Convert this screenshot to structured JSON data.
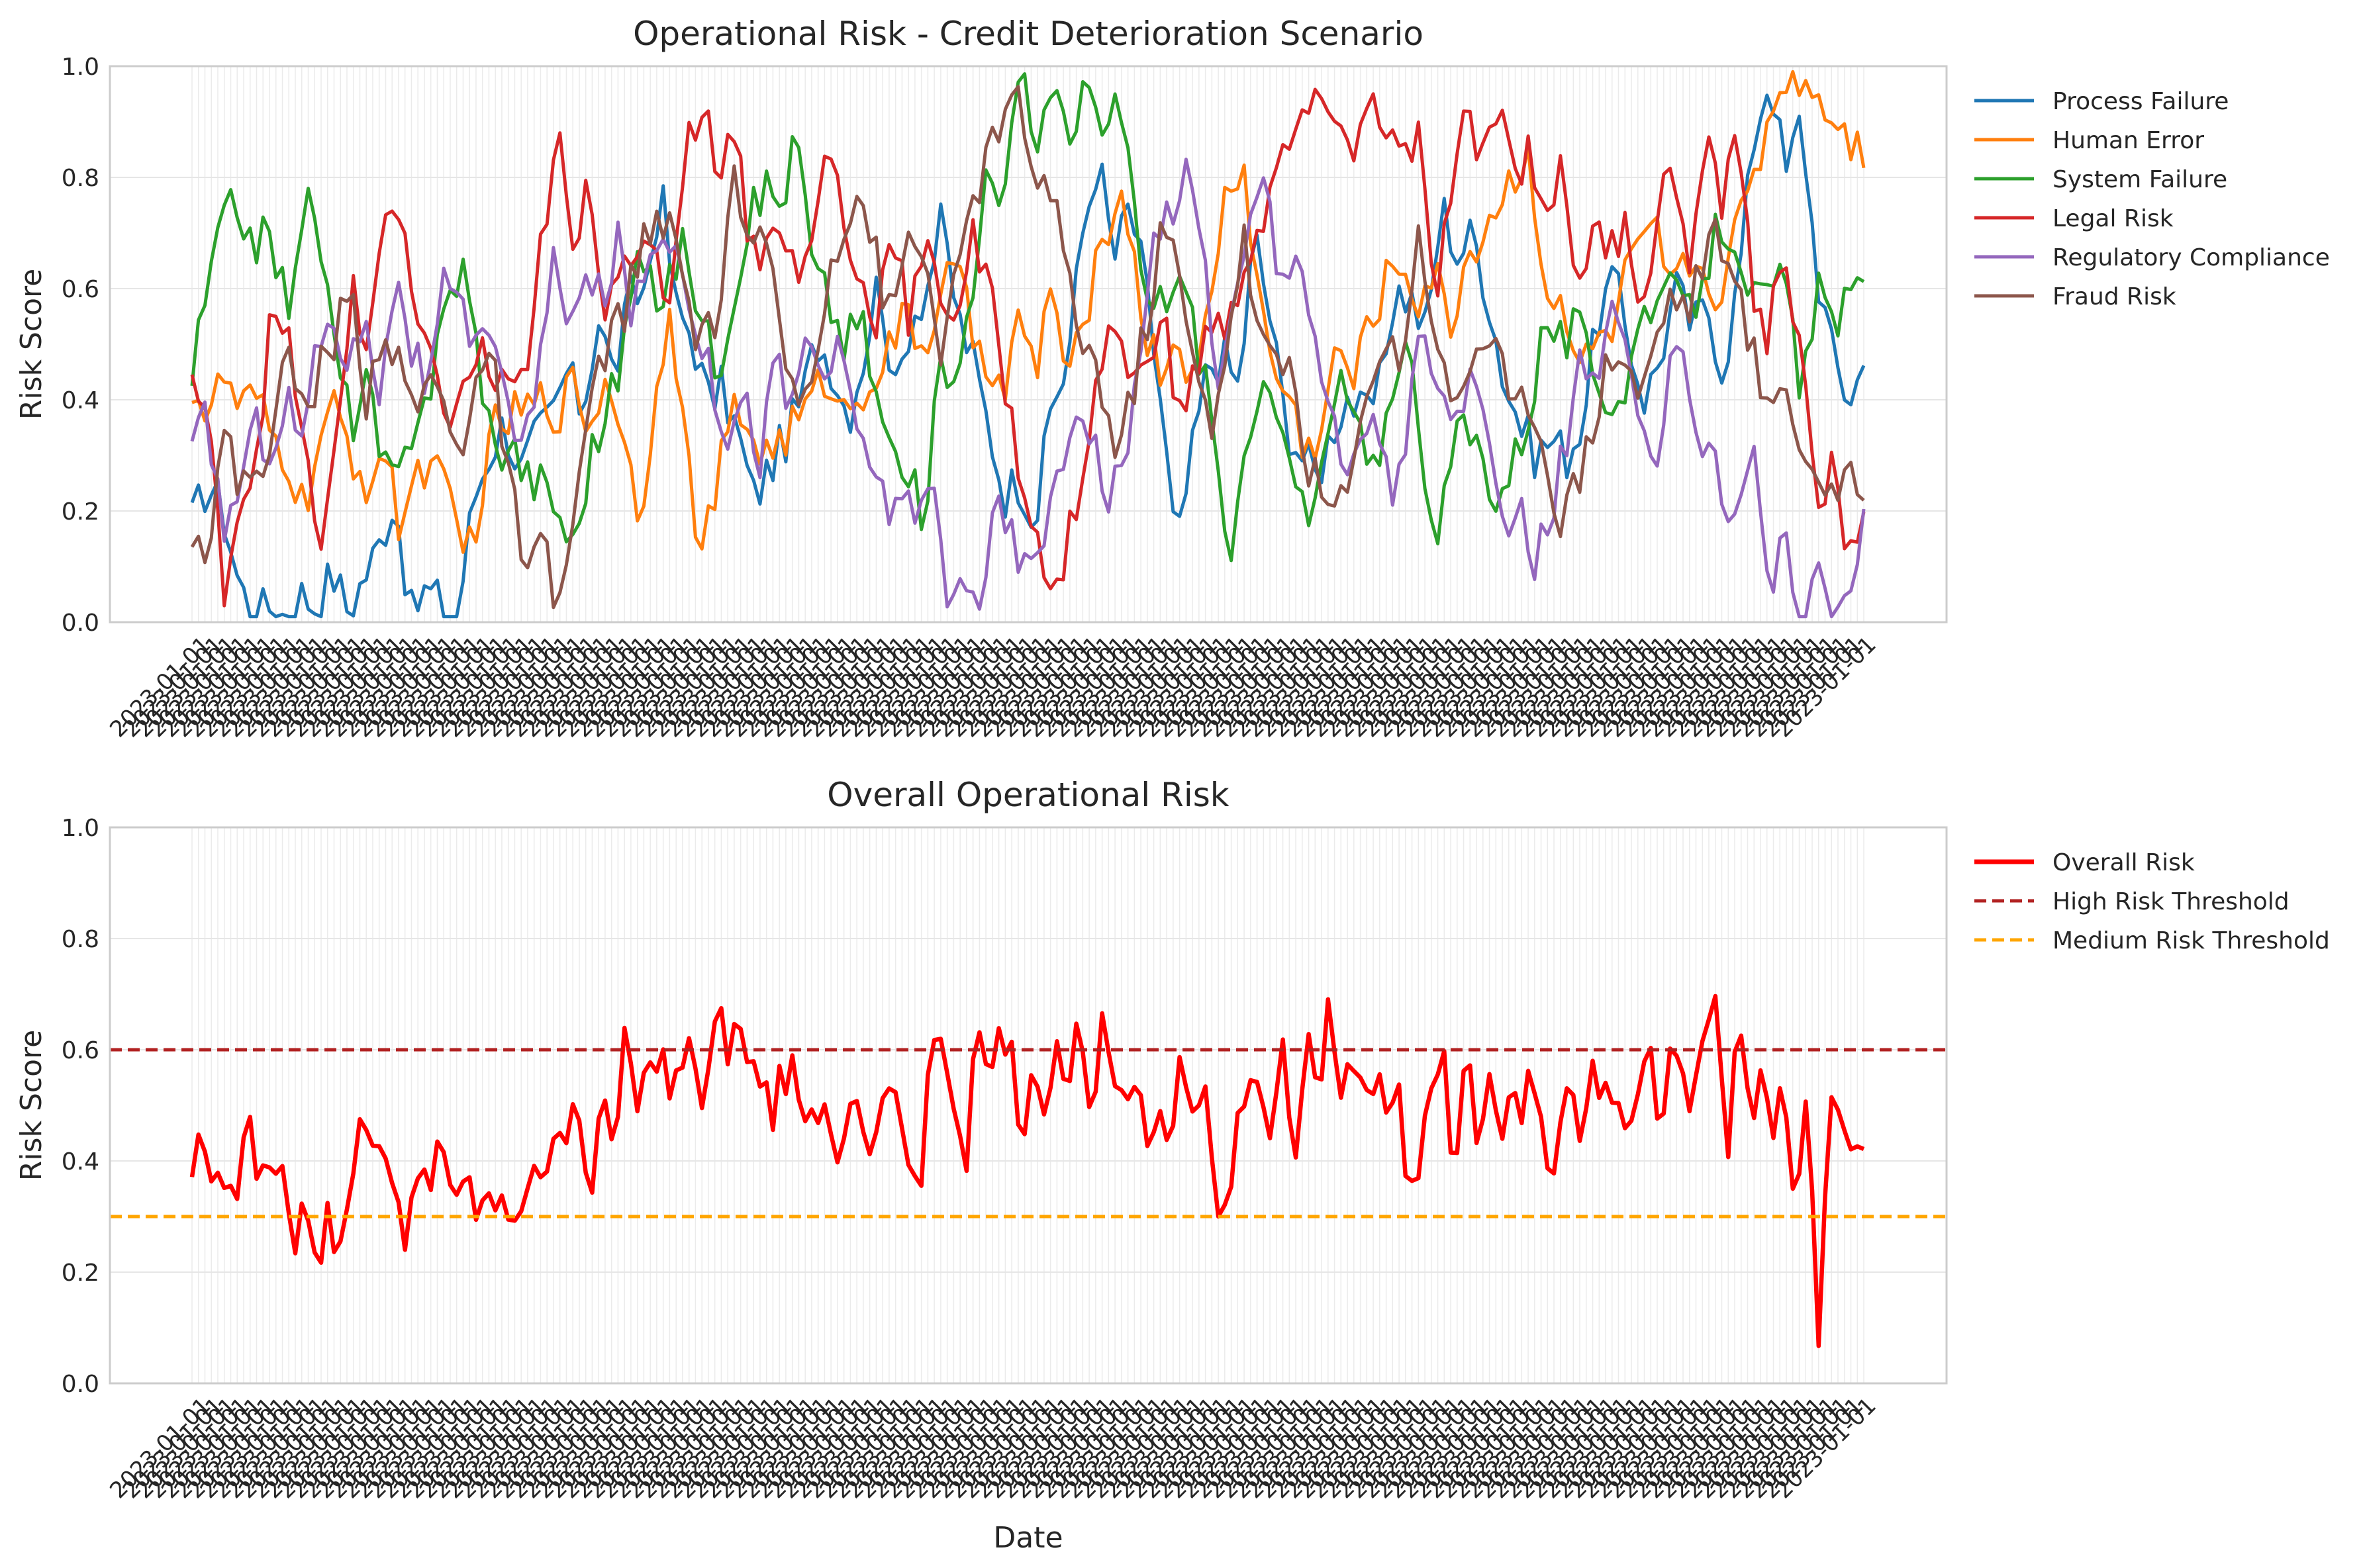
{
  "chart_data": [
    {
      "type": "line",
      "title": "Operational Risk - Credit Deterioration Scenario",
      "xlabel": "",
      "ylabel": "Risk Score",
      "ylim": [
        0,
        1
      ],
      "yticks": [
        "0.0",
        "0.2",
        "0.4",
        "0.6",
        "0.8",
        "1.0"
      ],
      "x_count": 260,
      "x_tick_labels_note": "dense overlapping rotated date labels",
      "grid": true,
      "legend": "outside-right",
      "series": [
        {
          "name": "Process Failure",
          "color": "#1f77b4",
          "keyframes": [
            0.18,
            0.25,
            0.2,
            0.07,
            0.01,
            0.03,
            0.01,
            0.05,
            0.03,
            0.09,
            0.02,
            0.08,
            0.14,
            0.23,
            0.01,
            0.06,
            0.03,
            0.01,
            0.22,
            0.3,
            0.36,
            0.27,
            0.33,
            0.37,
            0.45,
            0.38,
            0.55,
            0.44,
            0.58,
            0.6,
            0.78,
            0.56,
            0.52,
            0.4,
            0.42,
            0.33,
            0.22,
            0.28,
            0.33,
            0.4,
            0.51,
            0.46,
            0.37,
            0.48,
            0.63,
            0.4,
            0.55,
            0.6,
            0.72,
            0.55,
            0.47,
            0.35,
            0.23,
            0.26,
            0.18,
            0.39,
            0.46,
            0.7,
            0.84,
            0.65,
            0.75,
            0.61,
            0.4,
            0.12,
            0.3,
            0.46,
            0.48,
            0.42,
            0.7,
            0.55,
            0.36,
            0.3,
            0.26,
            0.35,
            0.41,
            0.36,
            0.42,
            0.6,
            0.58,
            0.52,
            0.75,
            0.66,
            0.7,
            0.58,
            0.43,
            0.36,
            0.3,
            0.33,
            0.3,
            0.36,
            0.55,
            0.62,
            0.5,
            0.4,
            0.48,
            0.6,
            0.53,
            0.57,
            0.45,
            0.62,
            0.88,
            0.99,
            0.8,
            0.91,
            0.63,
            0.48,
            0.4,
            0.46
          ]
        },
        {
          "name": "Human Error",
          "color": "#ff7f0e",
          "keyframes": [
            0.43,
            0.37,
            0.44,
            0.38,
            0.4,
            0.33,
            0.29,
            0.2,
            0.32,
            0.38,
            0.3,
            0.25,
            0.31,
            0.18,
            0.26,
            0.3,
            0.22,
            0.12,
            0.2,
            0.35,
            0.37,
            0.38,
            0.4,
            0.38,
            0.43,
            0.35,
            0.44,
            0.37,
            0.18,
            0.37,
            0.6,
            0.31,
            0.12,
            0.25,
            0.38,
            0.35,
            0.3,
            0.33,
            0.36,
            0.4,
            0.45,
            0.37,
            0.42,
            0.45,
            0.5,
            0.55,
            0.48,
            0.6,
            0.63,
            0.52,
            0.48,
            0.4,
            0.55,
            0.44,
            0.63,
            0.4,
            0.55,
            0.65,
            0.78,
            0.7,
            0.5,
            0.45,
            0.52,
            0.4,
            0.6,
            0.78,
            0.83,
            0.58,
            0.45,
            0.4,
            0.3,
            0.36,
            0.5,
            0.43,
            0.55,
            0.61,
            0.65,
            0.58,
            0.63,
            0.53,
            0.65,
            0.7,
            0.75,
            0.8,
            0.85,
            0.6,
            0.55,
            0.45,
            0.52,
            0.48,
            0.62,
            0.66,
            0.7,
            0.58,
            0.66,
            0.62,
            0.6,
            0.7,
            0.8,
            0.9,
            0.99,
            0.99,
            0.95,
            0.92,
            0.88,
            0.85
          ]
        },
        {
          "name": "System Failure",
          "color": "#2ca02c",
          "keyframes": [
            0.44,
            0.6,
            0.73,
            0.74,
            0.69,
            0.68,
            0.57,
            0.76,
            0.7,
            0.48,
            0.36,
            0.43,
            0.27,
            0.25,
            0.38,
            0.43,
            0.58,
            0.64,
            0.48,
            0.3,
            0.33,
            0.26,
            0.25,
            0.2,
            0.13,
            0.3,
            0.37,
            0.48,
            0.66,
            0.58,
            0.62,
            0.68,
            0.55,
            0.45,
            0.6,
            0.72,
            0.79,
            0.75,
            0.88,
            0.63,
            0.58,
            0.5,
            0.55,
            0.4,
            0.3,
            0.25,
            0.2,
            0.45,
            0.48,
            0.56,
            0.86,
            0.75,
            0.99,
            0.85,
            0.99,
            0.85,
            0.99,
            0.86,
            0.94,
            0.78,
            0.56,
            0.58,
            0.62,
            0.52,
            0.4,
            0.11,
            0.25,
            0.38,
            0.42,
            0.33,
            0.15,
            0.28,
            0.43,
            0.38,
            0.24,
            0.37,
            0.52,
            0.4,
            0.09,
            0.29,
            0.36,
            0.3,
            0.22,
            0.29,
            0.38,
            0.55,
            0.5,
            0.53,
            0.45,
            0.4,
            0.42,
            0.55,
            0.6,
            0.58,
            0.55,
            0.63,
            0.72,
            0.7,
            0.58,
            0.57,
            0.63,
            0.4,
            0.59,
            0.55,
            0.57,
            0.59
          ]
        },
        {
          "name": "Legal Risk",
          "color": "#d62728",
          "keyframes": [
            0.44,
            0.35,
            0.07,
            0.22,
            0.3,
            0.55,
            0.5,
            0.35,
            0.08,
            0.33,
            0.6,
            0.48,
            0.75,
            0.72,
            0.55,
            0.45,
            0.38,
            0.4,
            0.5,
            0.42,
            0.45,
            0.4,
            0.7,
            0.87,
            0.64,
            0.8,
            0.55,
            0.7,
            0.63,
            0.66,
            0.58,
            0.87,
            0.93,
            0.82,
            0.9,
            0.7,
            0.66,
            0.74,
            0.6,
            0.69,
            0.88,
            0.7,
            0.6,
            0.55,
            0.73,
            0.55,
            0.66,
            0.6,
            0.55,
            0.69,
            0.6,
            0.45,
            0.25,
            0.2,
            0.01,
            0.15,
            0.28,
            0.45,
            0.55,
            0.4,
            0.5,
            0.55,
            0.36,
            0.45,
            0.55,
            0.5,
            0.65,
            0.7,
            0.8,
            0.85,
            0.93,
            0.9,
            0.94,
            0.82,
            0.95,
            0.9,
            0.82,
            0.87,
            0.58,
            0.75,
            0.9,
            0.83,
            0.95,
            0.81,
            0.85,
            0.75,
            0.8,
            0.62,
            0.7,
            0.66,
            0.73,
            0.58,
            0.7,
            0.87,
            0.6,
            0.86,
            0.75,
            0.91,
            0.6,
            0.5,
            0.7,
            0.48,
            0.2,
            0.27,
            0.13,
            0.21
          ]
        },
        {
          "name": "Regulatory Compliance",
          "color": "#9467bd",
          "keyframes": [
            0.3,
            0.37,
            0.16,
            0.25,
            0.35,
            0.32,
            0.4,
            0.33,
            0.5,
            0.55,
            0.45,
            0.57,
            0.4,
            0.65,
            0.48,
            0.42,
            0.6,
            0.55,
            0.48,
            0.56,
            0.4,
            0.3,
            0.45,
            0.65,
            0.55,
            0.6,
            0.58,
            0.68,
            0.55,
            0.65,
            0.72,
            0.65,
            0.55,
            0.42,
            0.35,
            0.4,
            0.3,
            0.47,
            0.38,
            0.52,
            0.45,
            0.48,
            0.36,
            0.3,
            0.2,
            0.25,
            0.15,
            0.25,
            0.01,
            0.1,
            0.05,
            0.2,
            0.15,
            0.08,
            0.18,
            0.25,
            0.4,
            0.36,
            0.22,
            0.28,
            0.42,
            0.7,
            0.75,
            0.8,
            0.7,
            0.45,
            0.55,
            0.7,
            0.81,
            0.6,
            0.7,
            0.55,
            0.4,
            0.26,
            0.3,
            0.4,
            0.22,
            0.35,
            0.53,
            0.4,
            0.35,
            0.45,
            0.32,
            0.16,
            0.22,
            0.1,
            0.18,
            0.3,
            0.47,
            0.4,
            0.58,
            0.45,
            0.3,
            0.32,
            0.55,
            0.4,
            0.3,
            0.25,
            0.18,
            0.33,
            0.05,
            0.16,
            0.01,
            0.08,
            0.01,
            0.06,
            0.16
          ]
        },
        {
          "name": "Fraud Risk",
          "color": "#8c564b",
          "keyframes": [
            0.18,
            0.13,
            0.34,
            0.24,
            0.28,
            0.33,
            0.48,
            0.38,
            0.45,
            0.52,
            0.59,
            0.4,
            0.55,
            0.45,
            0.38,
            0.44,
            0.37,
            0.33,
            0.46,
            0.44,
            0.25,
            0.06,
            0.14,
            0.01,
            0.2,
            0.38,
            0.5,
            0.55,
            0.66,
            0.7,
            0.71,
            0.6,
            0.49,
            0.55,
            0.82,
            0.66,
            0.67,
            0.52,
            0.38,
            0.45,
            0.65,
            0.72,
            0.78,
            0.65,
            0.53,
            0.7,
            0.65,
            0.5,
            0.6,
            0.75,
            0.85,
            0.9,
            0.93,
            0.8,
            0.76,
            0.62,
            0.5,
            0.45,
            0.3,
            0.4,
            0.55,
            0.72,
            0.62,
            0.44,
            0.36,
            0.5,
            0.7,
            0.52,
            0.45,
            0.47,
            0.3,
            0.22,
            0.2,
            0.27,
            0.47,
            0.5,
            0.48,
            0.7,
            0.55,
            0.38,
            0.45,
            0.52,
            0.48,
            0.36,
            0.42,
            0.3,
            0.19,
            0.25,
            0.36,
            0.48,
            0.48,
            0.4,
            0.52,
            0.6,
            0.56,
            0.67,
            0.7,
            0.58,
            0.5,
            0.36,
            0.47,
            0.3,
            0.27,
            0.24,
            0.25,
            0.21
          ]
        }
      ]
    },
    {
      "type": "line",
      "title": "Overall Operational Risk",
      "xlabel": "Date",
      "ylabel": "Risk Score",
      "ylim": [
        0,
        1
      ],
      "yticks": [
        "0.0",
        "0.2",
        "0.4",
        "0.6",
        "0.8",
        "1.0"
      ],
      "x_count": 260,
      "grid": true,
      "legend": "outside-right",
      "series": [
        {
          "name": "Overall Risk",
          "color": "#ff0000",
          "style": "solid",
          "keyframes": [
            0.34,
            0.47,
            0.33,
            0.39,
            0.33,
            0.52,
            0.34,
            0.41,
            0.39,
            0.26,
            0.33,
            0.23,
            0.3,
            0.22,
            0.38,
            0.5,
            0.4,
            0.44,
            0.35,
            0.25,
            0.4,
            0.34,
            0.45,
            0.33,
            0.38,
            0.3,
            0.37,
            0.32,
            0.33,
            0.29,
            0.36,
            0.33,
            0.45,
            0.43,
            0.5,
            0.33,
            0.54,
            0.41,
            0.61,
            0.49,
            0.58,
            0.6,
            0.52,
            0.55,
            0.66,
            0.44,
            0.68,
            0.6,
            0.65,
            0.55,
            0.56,
            0.48,
            0.56,
            0.55,
            0.44,
            0.5,
            0.51,
            0.39,
            0.56,
            0.48,
            0.4,
            0.6,
            0.47,
            0.43,
            0.35,
            0.65,
            0.57,
            0.5,
            0.37,
            0.64,
            0.55,
            0.66,
            0.6,
            0.45,
            0.62,
            0.43,
            0.63,
            0.52,
            0.65,
            0.49,
            0.64,
            0.55,
            0.48,
            0.55,
            0.4,
            0.51,
            0.39,
            0.59,
            0.45,
            0.53,
            0.36,
            0.27,
            0.49,
            0.53,
            0.52,
            0.43,
            0.62,
            0.41,
            0.61,
            0.52,
            0.7,
            0.54,
            0.6,
            0.48,
            0.53,
            0.5,
            0.56,
            0.33,
            0.4,
            0.53,
            0.6,
            0.37,
            0.62,
            0.42,
            0.6,
            0.44,
            0.55,
            0.48,
            0.57,
            0.4,
            0.37,
            0.59,
            0.46,
            0.54,
            0.55,
            0.47,
            0.46,
            0.52,
            0.64,
            0.45,
            0.6,
            0.53,
            0.49,
            0.62,
            0.74,
            0.42,
            0.67,
            0.45,
            0.59,
            0.47,
            0.52,
            0.27,
            0.56,
            0.09,
            0.48,
            0.49,
            0.43,
            0.42
          ]
        },
        {
          "name": "High Risk Threshold",
          "color": "#b22222",
          "style": "dashed",
          "value": 0.6
        },
        {
          "name": "Medium Risk Threshold",
          "color": "#ffa500",
          "style": "dashed",
          "value": 0.3
        }
      ]
    }
  ]
}
